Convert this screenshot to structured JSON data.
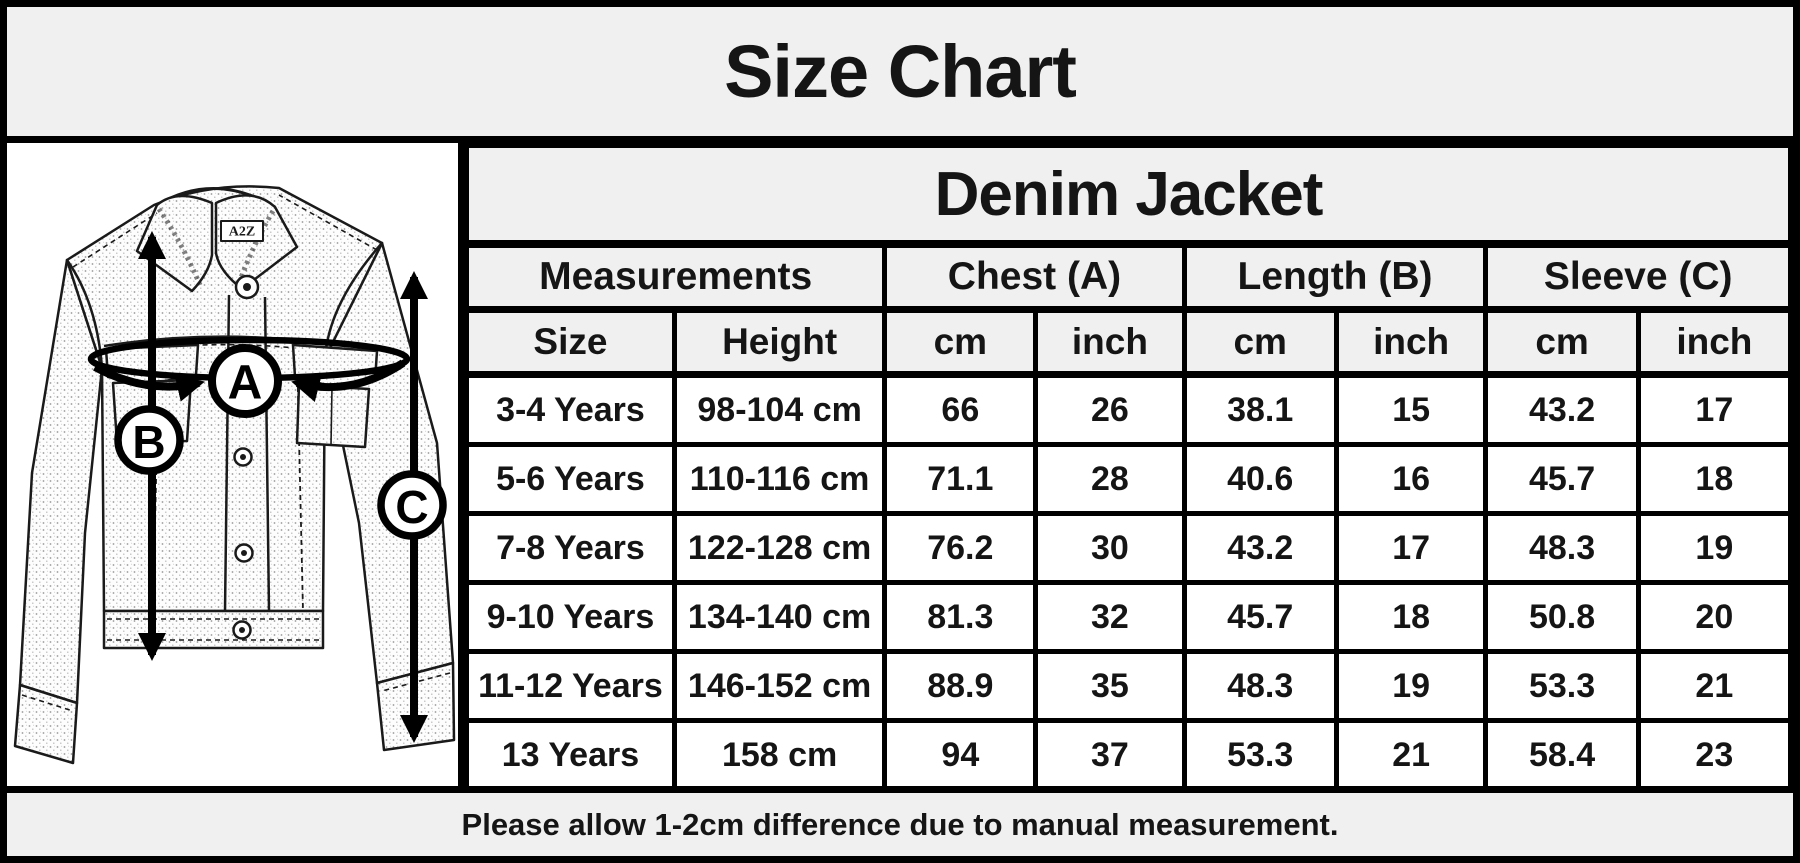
{
  "header": {
    "title": "Size Chart"
  },
  "table": {
    "title": "Denim Jacket",
    "group_headers": {
      "measurements": "Measurements",
      "chest": "Chest (A)",
      "length": "Length (B)",
      "sleeve": "Sleeve (C)"
    },
    "sub_headers": [
      "Size",
      "Height",
      "cm",
      "inch",
      "cm",
      "inch",
      "cm",
      "inch"
    ],
    "rows": [
      [
        "3-4 Years",
        "98-104 cm",
        "66",
        "26",
        "38.1",
        "15",
        "43.2",
        "17"
      ],
      [
        "5-6 Years",
        "110-116 cm",
        "71.1",
        "28",
        "40.6",
        "16",
        "45.7",
        "18"
      ],
      [
        "7-8 Years",
        "122-128 cm",
        "76.2",
        "30",
        "43.2",
        "17",
        "48.3",
        "19"
      ],
      [
        "9-10 Years",
        "134-140 cm",
        "81.3",
        "32",
        "45.7",
        "18",
        "50.8",
        "20"
      ],
      [
        "11-12 Years",
        "146-152 cm",
        "88.9",
        "35",
        "48.3",
        "19",
        "53.3",
        "21"
      ],
      [
        "13 Years",
        "158 cm",
        "94",
        "37",
        "53.3",
        "21",
        "58.4",
        "23"
      ]
    ]
  },
  "diagram": {
    "brand_label": "A2Z",
    "marker_a": "A",
    "marker_b": "B",
    "marker_c": "C"
  },
  "footer": {
    "note": "Please allow 1-2cm difference due to manual measurement."
  },
  "colors": {
    "band_bg": "#f0f0f0",
    "cell_bg": "#ffffff",
    "border": "#000000",
    "text": "#111111"
  }
}
